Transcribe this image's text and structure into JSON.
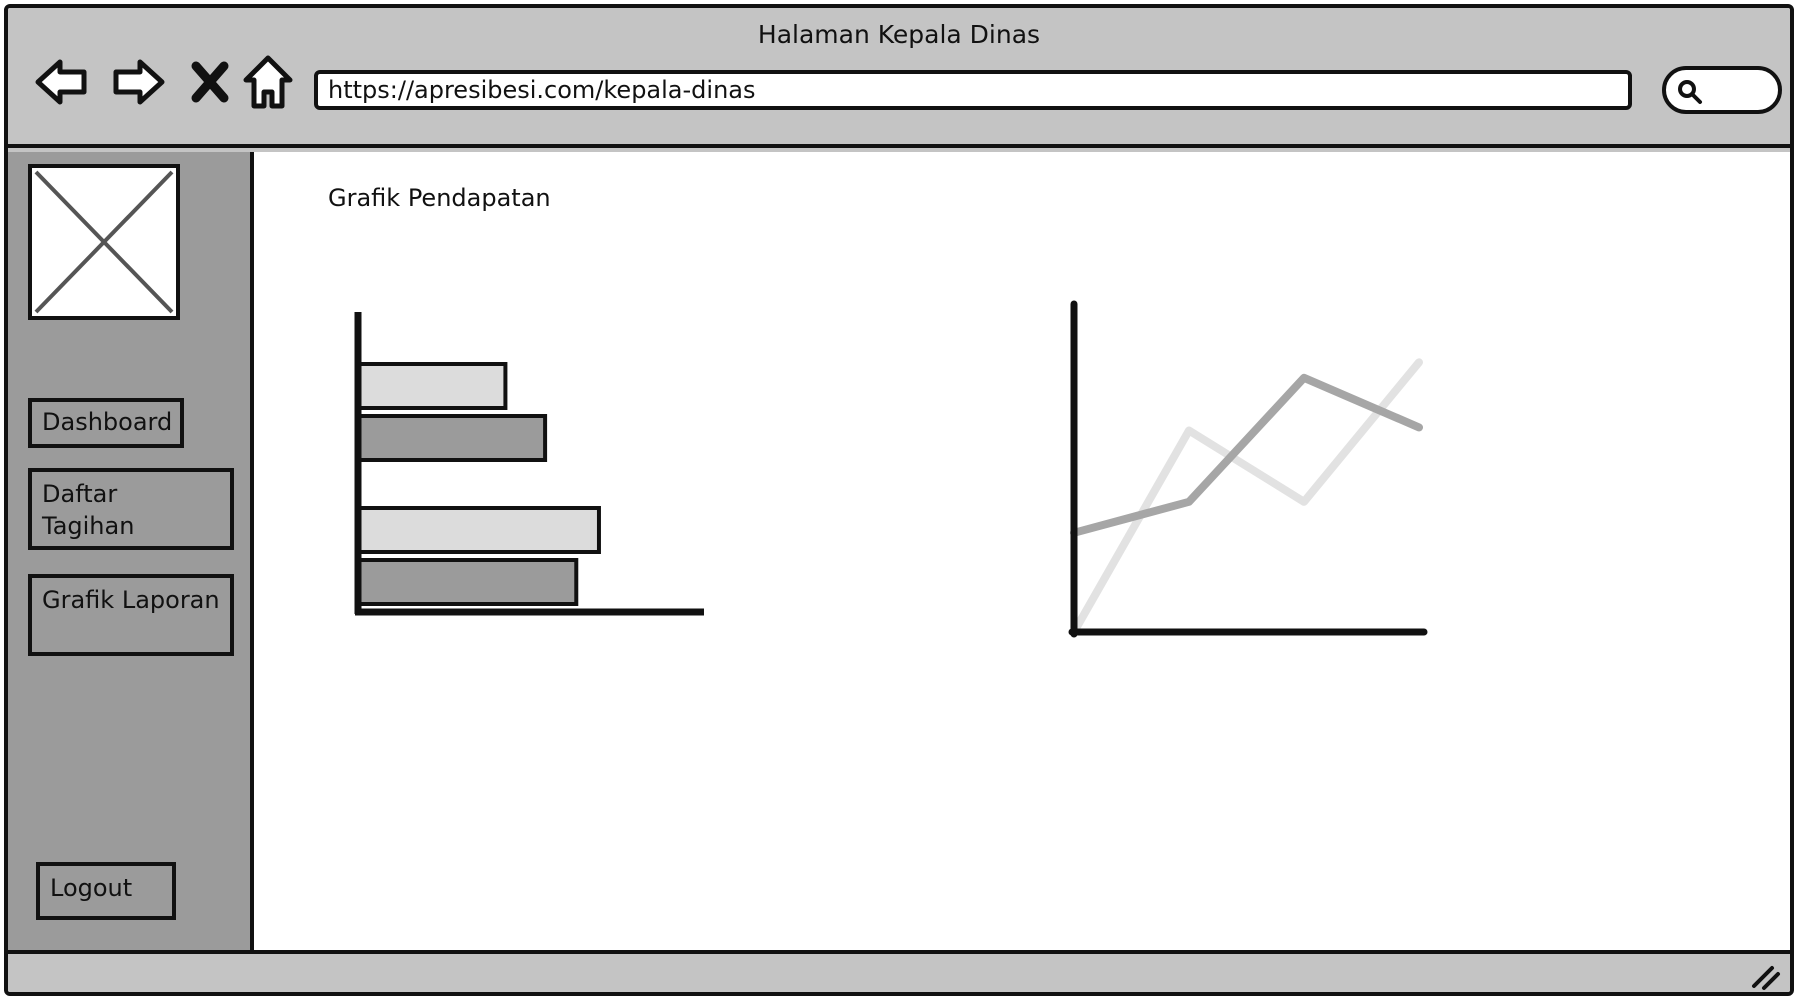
{
  "window": {
    "title": "Halaman Kepala Dinas",
    "url": "https://apresibesi.com/kepala-dinas"
  },
  "toolbar": {
    "icons": [
      "back-arrow-icon",
      "forward-arrow-icon",
      "close-icon",
      "home-icon",
      "search-icon"
    ]
  },
  "sidebar": {
    "logo": "image-placeholder-icon",
    "items": [
      {
        "label": "Dashboard"
      },
      {
        "label": "Daftar Tagihan"
      },
      {
        "label": "Grafik Laporan"
      }
    ],
    "logout_label": "Logout"
  },
  "main": {
    "title": "Grafik Pendapatan"
  },
  "colors": {
    "chrome": "#c4c4c4",
    "sidebar": "#9b9b9b",
    "bar_light": "#dcdcdc",
    "bar_dark": "#9b9b9b",
    "line_dark": "#a6a6a6",
    "line_light": "#e2e2e2"
  },
  "chart_data": [
    {
      "type": "bar",
      "orientation": "horizontal",
      "categories": [
        "",
        ""
      ],
      "series": [
        {
          "values": [
            5.2,
            8.5
          ]
        },
        {
          "values": [
            6.6,
            7.7
          ]
        }
      ],
      "xlim": [
        0,
        11.5
      ],
      "title": "",
      "xlabel": "",
      "ylabel": ""
    },
    {
      "type": "line",
      "x": [
        0,
        1,
        2,
        3
      ],
      "series": [
        {
          "values": [
            3.2,
            4.2,
            8.2,
            6.6
          ]
        },
        {
          "values": [
            0,
            6.5,
            4.2,
            8.7
          ]
        }
      ],
      "xlim": [
        0,
        3
      ],
      "ylim": [
        0,
        10
      ],
      "title": "",
      "xlabel": "",
      "ylabel": ""
    }
  ]
}
